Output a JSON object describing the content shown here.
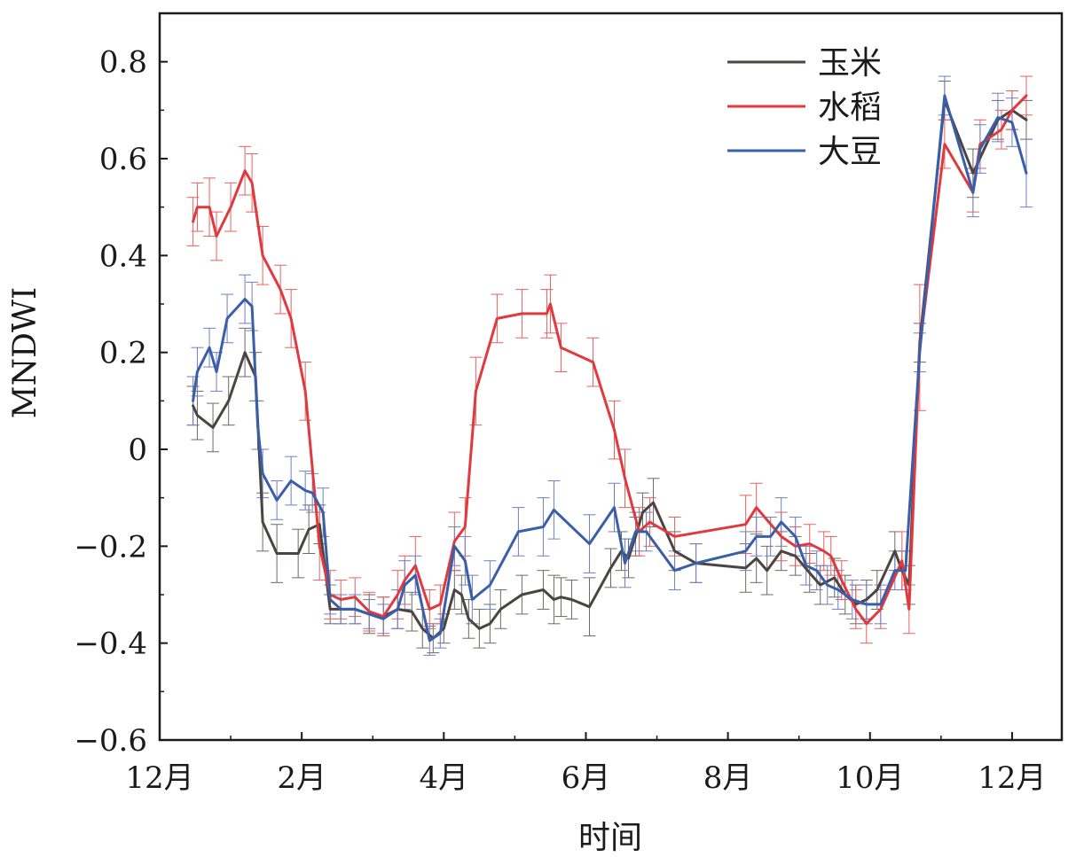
{
  "chart_data": {
    "type": "line",
    "xlabel": "时间",
    "ylabel": "MNDWI",
    "xlim": [
      0,
      12.7
    ],
    "ylim": [
      -0.6,
      0.9
    ],
    "x_ticks": [
      {
        "value": 0,
        "label": "12月"
      },
      {
        "value": 2,
        "label": "2月"
      },
      {
        "value": 4,
        "label": "4月"
      },
      {
        "value": 6,
        "label": "6月"
      },
      {
        "value": 8,
        "label": "8月"
      },
      {
        "value": 10,
        "label": "10月"
      },
      {
        "value": 12,
        "label": "12月"
      }
    ],
    "y_ticks": [
      {
        "value": -0.6,
        "label": "−0.6"
      },
      {
        "value": -0.4,
        "label": "−0.4"
      },
      {
        "value": -0.2,
        "label": "−0.2"
      },
      {
        "value": 0,
        "label": "0"
      },
      {
        "value": 0.2,
        "label": "0.2"
      },
      {
        "value": 0.4,
        "label": "0.4"
      },
      {
        "value": 0.6,
        "label": "0.6"
      },
      {
        "value": 0.8,
        "label": "0.8"
      }
    ],
    "grid": false,
    "legend_position": "top-right",
    "series": [
      {
        "name": "玉米",
        "color": "#4a4542",
        "error_color": "#6e6864",
        "x": [
          0.47,
          0.53,
          0.75,
          0.97,
          1.2,
          1.35,
          1.45,
          1.65,
          1.95,
          2.1,
          2.25,
          2.4,
          2.55,
          2.75,
          2.95,
          3.15,
          3.35,
          3.55,
          3.7,
          3.85,
          4.0,
          4.15,
          4.25,
          4.35,
          4.5,
          4.65,
          4.8,
          5.1,
          5.4,
          5.55,
          5.65,
          5.8,
          6.05,
          6.35,
          6.5,
          6.6,
          6.7,
          6.8,
          6.95,
          7.25,
          7.55,
          8.25,
          8.4,
          8.55,
          8.75,
          8.95,
          9.15,
          9.3,
          9.5,
          9.65,
          9.8,
          9.95,
          10.1,
          10.35,
          10.45,
          10.55,
          10.7,
          11.05,
          11.45,
          11.8,
          12.0,
          12.2
        ],
        "y": [
          0.09,
          0.07,
          0.045,
          0.1,
          0.2,
          0.15,
          -0.15,
          -0.215,
          -0.215,
          -0.165,
          -0.155,
          -0.33,
          -0.33,
          -0.33,
          -0.34,
          -0.345,
          -0.33,
          -0.335,
          -0.37,
          -0.39,
          -0.37,
          -0.29,
          -0.3,
          -0.35,
          -0.37,
          -0.36,
          -0.33,
          -0.3,
          -0.29,
          -0.31,
          -0.305,
          -0.31,
          -0.325,
          -0.245,
          -0.21,
          -0.225,
          -0.18,
          -0.13,
          -0.11,
          -0.21,
          -0.235,
          -0.245,
          -0.225,
          -0.25,
          -0.21,
          -0.22,
          -0.255,
          -0.28,
          -0.265,
          -0.3,
          -0.32,
          -0.31,
          -0.29,
          -0.21,
          -0.25,
          -0.28,
          0.22,
          0.72,
          0.57,
          0.68,
          0.7,
          0.68
        ],
        "err": [
          0.04,
          0.05,
          0.05,
          0.05,
          0.05,
          0.05,
          0.06,
          0.06,
          0.05,
          0.05,
          0.04,
          0.03,
          0.03,
          0.03,
          0.04,
          0.04,
          0.04,
          0.04,
          0.04,
          0.03,
          0.03,
          0.04,
          0.04,
          0.04,
          0.04,
          0.04,
          0.04,
          0.04,
          0.04,
          0.05,
          0.04,
          0.04,
          0.06,
          0.04,
          0.04,
          0.04,
          0.04,
          0.04,
          0.05,
          0.04,
          0.04,
          0.05,
          0.05,
          0.05,
          0.04,
          0.04,
          0.04,
          0.04,
          0.04,
          0.04,
          0.04,
          0.04,
          0.04,
          0.04,
          0.04,
          0.04,
          0.04,
          0.04,
          0.05,
          0.04,
          0.04,
          0.04
        ]
      },
      {
        "name": "水稻",
        "color": "#e0393e",
        "error_color": "#e8605f",
        "x": [
          0.47,
          0.53,
          0.7,
          0.8,
          1.0,
          1.2,
          1.3,
          1.45,
          1.7,
          1.85,
          2.05,
          2.25,
          2.4,
          2.55,
          2.75,
          2.95,
          3.15,
          3.35,
          3.45,
          3.6,
          3.8,
          3.95,
          4.15,
          4.3,
          4.45,
          4.75,
          5.1,
          5.45,
          5.5,
          5.65,
          6.1,
          6.4,
          6.55,
          6.75,
          6.9,
          7.25,
          8.25,
          8.4,
          8.75,
          8.95,
          9.15,
          9.35,
          9.45,
          9.6,
          9.8,
          9.95,
          10.15,
          10.45,
          10.55,
          10.7,
          11.05,
          11.45,
          11.55,
          11.85,
          12.0,
          12.2
        ],
        "y": [
          0.47,
          0.5,
          0.5,
          0.44,
          0.5,
          0.575,
          0.55,
          0.4,
          0.33,
          0.27,
          0.12,
          -0.2,
          -0.3,
          -0.31,
          -0.305,
          -0.335,
          -0.345,
          -0.3,
          -0.27,
          -0.24,
          -0.33,
          -0.32,
          -0.19,
          -0.16,
          0.12,
          0.27,
          0.28,
          0.28,
          0.3,
          0.21,
          0.18,
          0.04,
          -0.06,
          -0.17,
          -0.15,
          -0.18,
          -0.155,
          -0.12,
          -0.18,
          -0.2,
          -0.195,
          -0.21,
          -0.22,
          -0.27,
          -0.33,
          -0.36,
          -0.33,
          -0.23,
          -0.33,
          0.21,
          0.63,
          0.53,
          0.63,
          0.66,
          0.7,
          0.73
        ],
        "err": [
          0.05,
          0.05,
          0.06,
          0.05,
          0.05,
          0.05,
          0.06,
          0.06,
          0.05,
          0.06,
          0.06,
          0.07,
          0.05,
          0.04,
          0.04,
          0.04,
          0.04,
          0.05,
          0.05,
          0.06,
          0.04,
          0.04,
          0.06,
          0.06,
          0.07,
          0.05,
          0.05,
          0.05,
          0.06,
          0.05,
          0.05,
          0.06,
          0.06,
          0.05,
          0.05,
          0.04,
          0.06,
          0.05,
          0.05,
          0.04,
          0.04,
          0.04,
          0.04,
          0.04,
          0.04,
          0.04,
          0.04,
          0.06,
          0.05,
          0.13,
          0.05,
          0.04,
          0.05,
          0.04,
          0.04,
          0.04
        ]
      },
      {
        "name": "大豆",
        "color": "#3a5ea8",
        "error_color": "#6f7fc2",
        "x": [
          0.47,
          0.53,
          0.7,
          0.8,
          0.95,
          1.2,
          1.3,
          1.38,
          1.45,
          1.65,
          1.85,
          2.05,
          2.15,
          2.3,
          2.4,
          2.55,
          2.75,
          2.95,
          3.15,
          3.35,
          3.45,
          3.6,
          3.8,
          3.95,
          4.15,
          4.3,
          4.4,
          4.65,
          5.05,
          5.4,
          5.55,
          6.05,
          6.4,
          6.55,
          6.7,
          6.85,
          7.25,
          7.55,
          8.25,
          8.4,
          8.6,
          8.75,
          8.95,
          9.1,
          9.25,
          9.4,
          9.55,
          9.75,
          9.95,
          10.15,
          10.35,
          10.5,
          10.7,
          11.05,
          11.45,
          11.55,
          11.8,
          12.0,
          12.2
        ],
        "y": [
          0.1,
          0.16,
          0.21,
          0.16,
          0.27,
          0.31,
          0.295,
          0.05,
          -0.05,
          -0.105,
          -0.065,
          -0.085,
          -0.09,
          -0.13,
          -0.31,
          -0.33,
          -0.33,
          -0.34,
          -0.35,
          -0.33,
          -0.28,
          -0.26,
          -0.395,
          -0.38,
          -0.2,
          -0.23,
          -0.31,
          -0.28,
          -0.17,
          -0.16,
          -0.125,
          -0.195,
          -0.12,
          -0.235,
          -0.17,
          -0.17,
          -0.25,
          -0.235,
          -0.21,
          -0.18,
          -0.18,
          -0.15,
          -0.18,
          -0.24,
          -0.25,
          -0.28,
          -0.29,
          -0.31,
          -0.32,
          -0.32,
          -0.25,
          -0.25,
          0.2,
          0.73,
          0.53,
          0.62,
          0.685,
          0.675,
          0.57
        ],
        "err": [
          0.05,
          0.05,
          0.04,
          0.04,
          0.05,
          0.05,
          0.05,
          0.05,
          0.05,
          0.04,
          0.05,
          0.04,
          0.04,
          0.05,
          0.03,
          0.03,
          0.03,
          0.03,
          0.03,
          0.04,
          0.05,
          0.04,
          0.03,
          0.03,
          0.04,
          0.05,
          0.05,
          0.05,
          0.05,
          0.06,
          0.06,
          0.06,
          0.05,
          0.05,
          0.04,
          0.04,
          0.04,
          0.04,
          0.04,
          0.04,
          0.04,
          0.05,
          0.04,
          0.04,
          0.04,
          0.04,
          0.04,
          0.04,
          0.04,
          0.04,
          0.04,
          0.04,
          0.04,
          0.04,
          0.05,
          0.05,
          0.05,
          0.05,
          0.07
        ]
      }
    ]
  }
}
